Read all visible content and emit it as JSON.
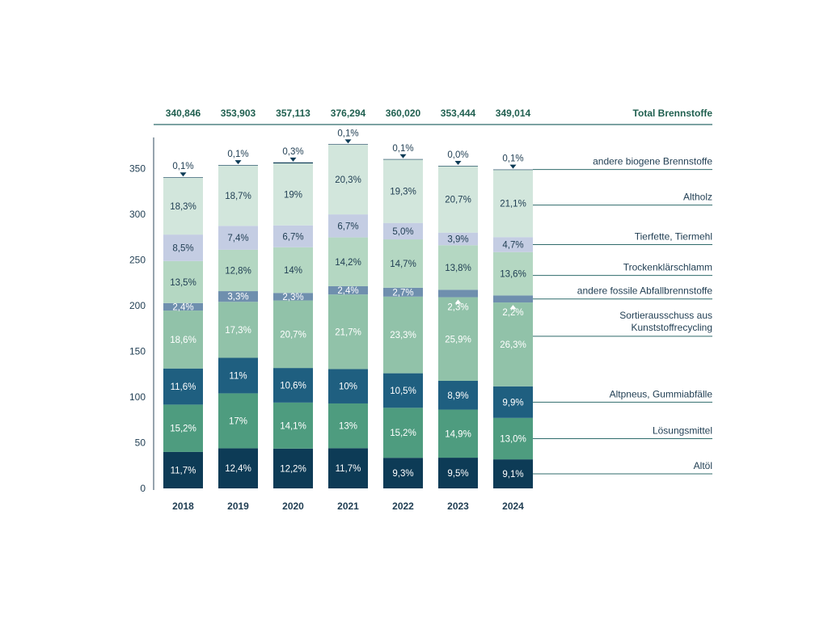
{
  "chart_data": {
    "type": "stacked-bar",
    "categories": [
      "2018",
      "2019",
      "2020",
      "2021",
      "2022",
      "2023",
      "2024"
    ],
    "totals": [
      "340,846",
      "353,903",
      "357,113",
      "376,294",
      "360,020",
      "353,444",
      "349,014"
    ],
    "total_values": [
      340.846,
      353.903,
      357.113,
      376.294,
      360.02,
      353.444,
      349.014
    ],
    "totals_label": "Total Brennstoffe",
    "y_ticks": [
      0,
      50,
      100,
      150,
      200,
      250,
      300,
      350
    ],
    "ylim": [
      0,
      380
    ],
    "series": [
      {
        "name": "Altöl",
        "color": "#0d3b56",
        "text_color": "#ffffff",
        "percents": [
          11.7,
          12.4,
          12.2,
          11.7,
          9.3,
          9.5,
          9.1
        ],
        "labels": [
          "11,7%",
          "12,4%",
          "12,2%",
          "11,7%",
          "9,3%",
          "9,5%",
          "9,1%"
        ]
      },
      {
        "name": "Lösungsmittel",
        "color": "#4e9c7f",
        "text_color": "#ffffff",
        "percents": [
          15.2,
          17,
          14.1,
          13,
          15.2,
          14.9,
          13.0
        ],
        "labels": [
          "15,2%",
          "17%",
          "14,1%",
          "13%",
          "15,2%",
          "14,9%",
          "13,0%"
        ]
      },
      {
        "name": "Altpneus, Gummiabfälle",
        "color": "#1f5f80",
        "text_color": "#ffffff",
        "percents": [
          11.6,
          11,
          10.6,
          10,
          10.5,
          8.9,
          9.9
        ],
        "labels": [
          "11,6%",
          "11%",
          "10,6%",
          "10%",
          "10,5%",
          "8,9%",
          "9,9%"
        ]
      },
      {
        "name": "Sortierausschuss aus Kunststoffrecycling",
        "color": "#91c2a9",
        "text_color": "#ffffff",
        "percents": [
          18.6,
          17.3,
          20.7,
          21.7,
          23.3,
          25.9,
          26.3
        ],
        "labels": [
          "18,6%",
          "17,3%",
          "20,7%",
          "21,7%",
          "23,3%",
          "25,9%",
          "26,3%"
        ]
      },
      {
        "name": "andere fossile Abfallbrennstoffe",
        "color": "#6f8fae",
        "text_color": "#ffffff",
        "percents": [
          2.4,
          3.3,
          2.3,
          2.4,
          2.7,
          2.3,
          2.2
        ],
        "labels": [
          "2,4%",
          "3,3%",
          "2,3%",
          "2,4%",
          "2,7%",
          "2,3%",
          "2,2%"
        ],
        "label_mode": [
          "in",
          "in",
          "in",
          "in",
          "in",
          "below",
          "below"
        ]
      },
      {
        "name": "Trockenklärschlamm",
        "color": "#b4d7c2",
        "text_color": "#1f3d52",
        "percents": [
          13.5,
          12.8,
          14,
          14.2,
          14.7,
          13.8,
          13.6
        ],
        "labels": [
          "13,5%",
          "12,8%",
          "14%",
          "14,2%",
          "14,7%",
          "13,8%",
          "13,6%"
        ]
      },
      {
        "name": "Tierfette, Tiermehl",
        "color": "#c4cde3",
        "text_color": "#1f3d52",
        "percents": [
          8.5,
          7.4,
          6.7,
          6.7,
          5.0,
          3.9,
          4.7
        ],
        "labels": [
          "8,5%",
          "7,4%",
          "6,7%",
          "6,7%",
          "5,0%",
          "3,9%",
          "4,7%"
        ]
      },
      {
        "name": "Altholz",
        "color": "#d2e6dc",
        "text_color": "#1f3d52",
        "percents": [
          18.3,
          18.7,
          19,
          20.3,
          19.3,
          20.7,
          21.1
        ],
        "labels": [
          "18,3%",
          "18,7%",
          "19%",
          "20,3%",
          "19,3%",
          "20,7%",
          "21,1%"
        ]
      },
      {
        "name": "andere biogene Brennstoffe",
        "color": "#0d3b56",
        "text_color": "#1f3d52",
        "percents": [
          0.1,
          0.1,
          0.3,
          0.1,
          0.1,
          0.0,
          0.1
        ],
        "labels": [
          "0,1%",
          "0,1%",
          "0,3%",
          "0,1%",
          "0,1%",
          "0,0%",
          "0,1%"
        ],
        "label_mode": [
          "above",
          "above",
          "above",
          "above",
          "above",
          "above",
          "above"
        ]
      }
    ],
    "legend_labels": [
      {
        "text": "andere biogene Brennstoffe"
      },
      {
        "text": "Altholz"
      },
      {
        "text": "Tierfette, Tiermehl"
      },
      {
        "text": "Trockenklärschlamm"
      },
      {
        "text": "andere fossile Abfallbrennstoffe"
      },
      {
        "text": "Sortierausschuss aus",
        "text2": "Kunststoffrecycling"
      },
      {
        "text": "Altpneus, Gummiabfälle"
      },
      {
        "text": "Lösungsmittel"
      },
      {
        "text": "Altöl"
      }
    ],
    "colors": {
      "axis": "#2f4a5c",
      "text": "#1f3d52",
      "line": "#2f6b6b",
      "totals": "#1f5f4f"
    }
  }
}
